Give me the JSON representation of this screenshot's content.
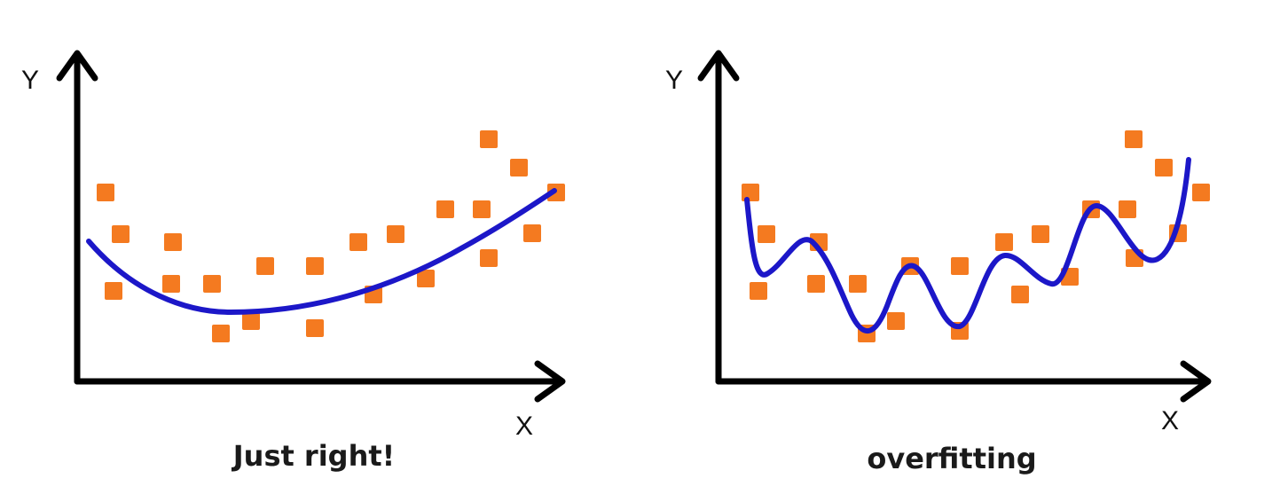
{
  "panels": [
    {
      "y_axis_label": "Y",
      "x_axis_label": "X",
      "caption": "Just right!",
      "curve_kind": "smooth-quadratic"
    },
    {
      "y_axis_label": "Y",
      "x_axis_label": "X",
      "caption": "overfitting",
      "curve_kind": "wiggly-overfit"
    }
  ],
  "colors": {
    "data_points": "#f47a20",
    "fit_curve": "#1c17c8",
    "axes": "#000000"
  }
}
